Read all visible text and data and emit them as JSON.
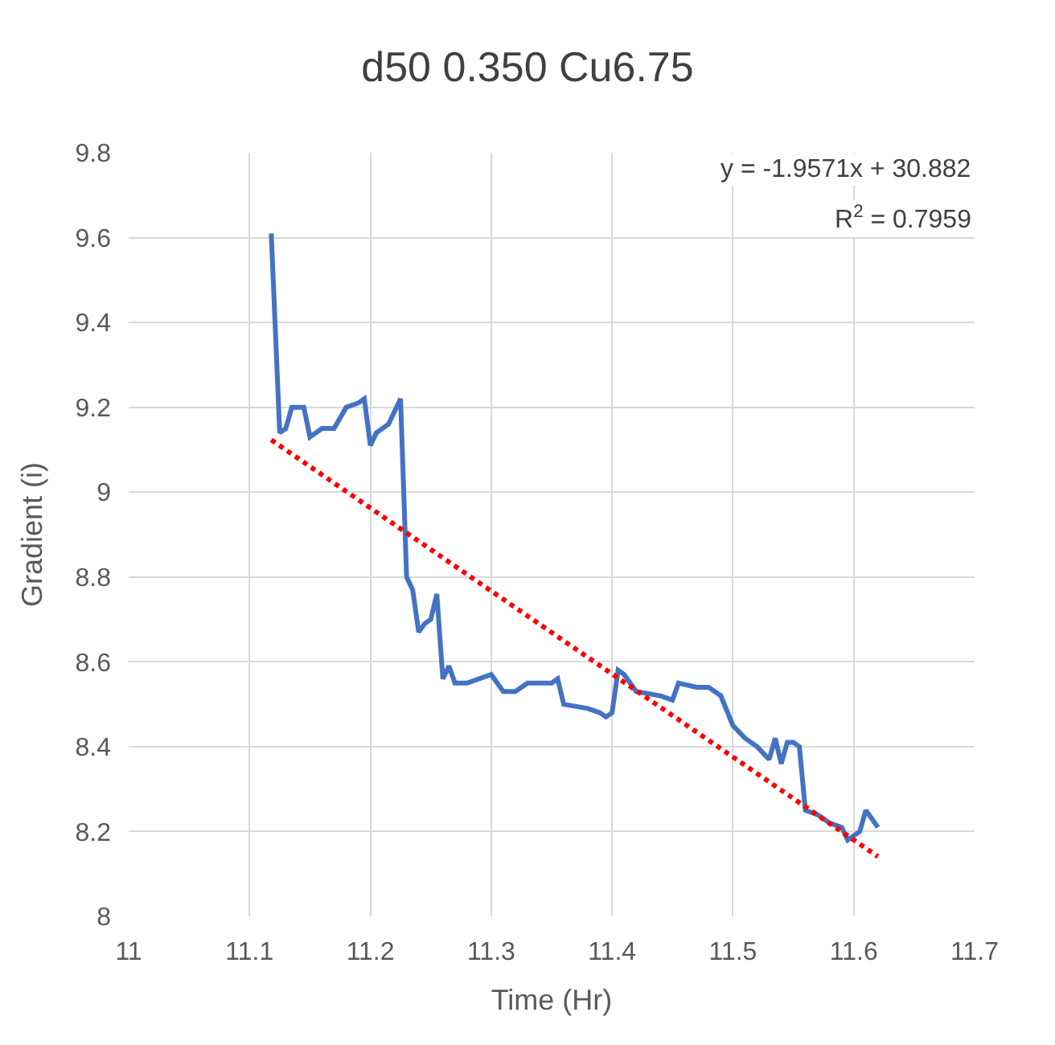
{
  "chart_data": {
    "type": "line",
    "title": "d50 0.350 Cu6.75",
    "xlabel": "Time (Hr)",
    "ylabel": "Gradient (i)",
    "xlim": [
      11,
      11.7
    ],
    "xticks": [
      11,
      11.1,
      11.2,
      11.3,
      11.4,
      11.5,
      11.6,
      11.7
    ],
    "ylim": [
      8,
      9.8
    ],
    "yticks": [
      8,
      8.2,
      8.4,
      8.6,
      8.8,
      9,
      9.2,
      9.4,
      9.6,
      9.8
    ],
    "grid": true,
    "marker": "none",
    "annotations": [
      "y = -1.9571x + 30.882",
      "R$^{2}$ = 0.7959"
    ],
    "series": [
      {
        "color": "#4472c4",
        "line_style": "solid",
        "x": [
          11.118,
          11.125,
          11.13,
          11.135,
          11.145,
          11.15,
          11.16,
          11.17,
          11.18,
          11.19,
          11.195,
          11.2,
          11.205,
          11.215,
          11.225,
          11.23,
          11.235,
          11.24,
          11.245,
          11.25,
          11.255,
          11.26,
          11.265,
          11.27,
          11.28,
          11.29,
          11.3,
          11.31,
          11.32,
          11.33,
          11.35,
          11.355,
          11.36,
          11.38,
          11.39,
          11.395,
          11.4,
          11.405,
          11.41,
          11.42,
          11.44,
          11.45,
          11.455,
          11.47,
          11.48,
          11.49,
          11.5,
          11.51,
          11.52,
          11.53,
          11.535,
          11.54,
          11.545,
          11.55,
          11.555,
          11.56,
          11.57,
          11.58,
          11.59,
          11.595,
          11.605,
          11.61,
          11.62
        ],
        "values": [
          9.61,
          9.14,
          9.15,
          9.2,
          9.2,
          9.13,
          9.15,
          9.15,
          9.2,
          9.21,
          9.22,
          9.11,
          9.14,
          9.16,
          9.22,
          8.8,
          8.77,
          8.67,
          8.69,
          8.7,
          8.76,
          8.56,
          8.59,
          8.55,
          8.55,
          8.56,
          8.57,
          8.53,
          8.53,
          8.55,
          8.55,
          8.56,
          8.5,
          8.49,
          8.48,
          8.47,
          8.48,
          8.58,
          8.57,
          8.53,
          8.52,
          8.51,
          8.55,
          8.54,
          8.54,
          8.52,
          8.45,
          8.42,
          8.4,
          8.37,
          8.42,
          8.36,
          8.41,
          8.41,
          8.4,
          8.25,
          8.24,
          8.22,
          8.21,
          8.18,
          8.2,
          8.25,
          8.21
        ]
      },
      {
        "color": "#ff0000",
        "line_style": "dotted",
        "x": [
          11.118,
          11.62
        ],
        "values": [
          9.123,
          8.141
        ]
      }
    ]
  }
}
